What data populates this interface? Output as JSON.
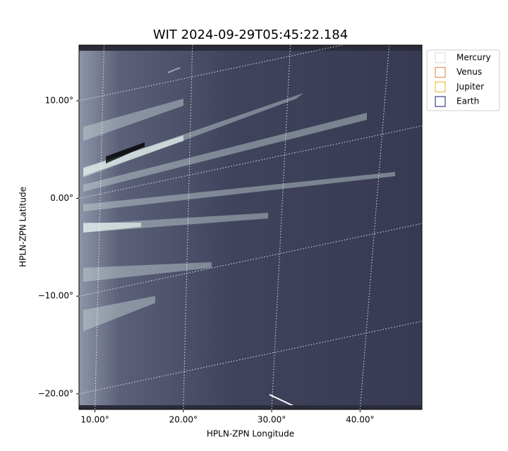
{
  "chart_data": {
    "type": "image",
    "title": "WIT 2024-09-29T05:45:22.184",
    "x_label": "HPLN-ZPN Longitude",
    "y_label": "HPLN-ZPN Latitude",
    "xlim": [
      8.2,
      47.0
    ],
    "ylim": [
      -21.6,
      15.7
    ],
    "xticks": [
      {
        "value": 10,
        "label": "10.00°"
      },
      {
        "value": 20,
        "label": "20.00°"
      },
      {
        "value": 30,
        "label": "30.00°"
      },
      {
        "value": 40,
        "label": "40.00°"
      }
    ],
    "yticks": [
      {
        "value": 10,
        "label": "10.00°"
      },
      {
        "value": 0,
        "label": "0.00°"
      },
      {
        "value": -10,
        "label": "−10.00°"
      },
      {
        "value": -20,
        "label": "−20.00°"
      }
    ],
    "grid": true,
    "legend_position": "upper right",
    "legend": [
      {
        "name": "Mercury",
        "color": "#d9d9d9"
      },
      {
        "name": "Venus",
        "color": "#e07b39"
      },
      {
        "name": "Jupiter",
        "color": "#e8b020"
      },
      {
        "name": "Earth",
        "color": "#1a1a7a"
      }
    ]
  }
}
